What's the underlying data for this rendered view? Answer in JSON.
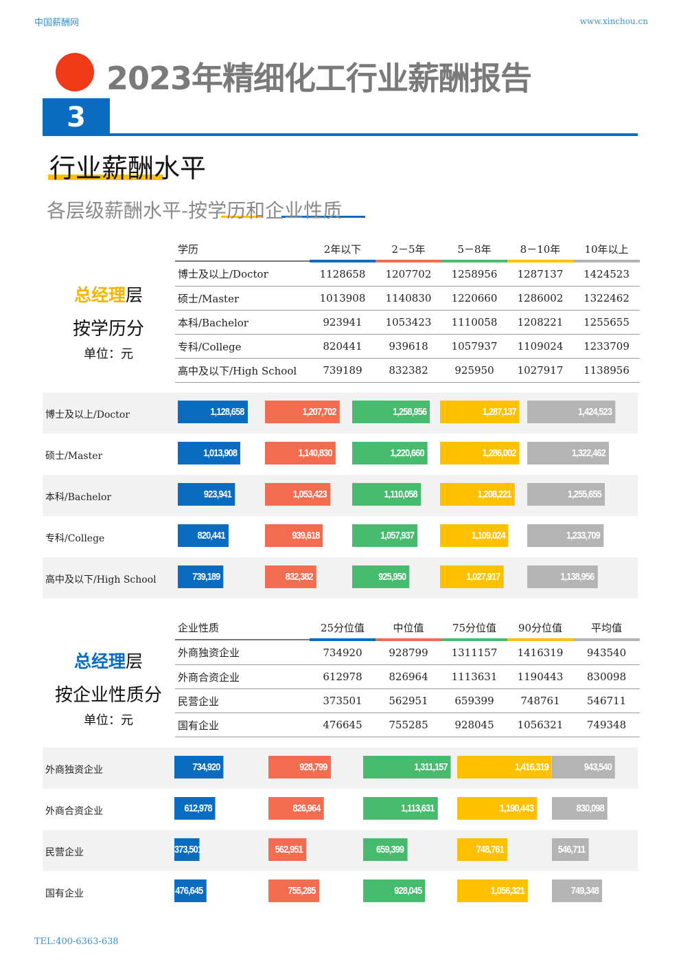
{
  "header": {
    "left": "中国薪酬网",
    "right": "www.xinchou.cn"
  },
  "title": "2023年精细化工行业薪酬报告",
  "section_number": "3",
  "section_title": "行业薪酬水平",
  "subtitle": "各层级薪酬水平-按学历和企业性质",
  "colors": [
    "#0a6cc0",
    "#f46c50",
    "#46bb6e",
    "#ffc000",
    "#b4b4b4"
  ],
  "edu": {
    "side": {
      "a": "总经理",
      "a2": "层",
      "b": "按学历分",
      "c": "单位：元"
    },
    "columns": [
      "学历",
      "2年以下",
      "2－5年",
      "5－8年",
      "8－10年",
      "10年以上"
    ],
    "rows": [
      {
        "label": "博士及以上/Doctor",
        "values": [
          1128658,
          1207702,
          1258956,
          1287137,
          1424523
        ],
        "fmt": [
          "1,128,658",
          "1,207,702",
          "1,258,956",
          "1,287,137",
          "1,424,523"
        ]
      },
      {
        "label": "硕士/Master",
        "values": [
          1013908,
          1140830,
          1220660,
          1286002,
          1322462
        ],
        "fmt": [
          "1,013,908",
          "1,140,830",
          "1,220,660",
          "1,286,002",
          "1,322,462"
        ]
      },
      {
        "label": "本科/Bachelor",
        "values": [
          923941,
          1053423,
          1110058,
          1208221,
          1255655
        ],
        "fmt": [
          "923,941",
          "1,053,423",
          "1,110,058",
          "1,208,221",
          "1,255,655"
        ]
      },
      {
        "label": "专科/College",
        "values": [
          820441,
          939618,
          1057937,
          1109024,
          1233709
        ],
        "fmt": [
          "820,441",
          "939,618",
          "1,057,937",
          "1,109,024",
          "1,233,709"
        ]
      },
      {
        "label": "高中及以下/High School",
        "values": [
          739189,
          832382,
          925950,
          1027917,
          1138956
        ],
        "fmt": [
          "739,189",
          "832,382",
          "925,950",
          "1,027,917",
          "1,138,956"
        ]
      }
    ]
  },
  "ent": {
    "side": {
      "a": "总经理",
      "a2": "层",
      "b": "按企业性质分",
      "c": "单位：元"
    },
    "columns": [
      "企业性质",
      "25分位值",
      "中位值",
      "75分位值",
      "90分位值",
      "平均值"
    ],
    "rows": [
      {
        "label": "外商独资企业",
        "values": [
          734920,
          928799,
          1311157,
          1416319,
          943540
        ],
        "fmt": [
          "734,920",
          "928,799",
          "1,311,157",
          "1,416,319",
          "943,540"
        ]
      },
      {
        "label": "外商合资企业",
        "values": [
          612978,
          826964,
          1113631,
          1190443,
          830098
        ],
        "fmt": [
          "612,978",
          "826,964",
          "1,113,631",
          "1,190,443",
          "830,098"
        ]
      },
      {
        "label": "民营企业",
        "values": [
          373501,
          562951,
          659399,
          748761,
          546711
        ],
        "fmt": [
          "373,501",
          "562,951",
          "659,399",
          "748,761",
          "546,711"
        ]
      },
      {
        "label": "国有企业",
        "values": [
          476645,
          755285,
          928045,
          1056321,
          749348
        ],
        "fmt": [
          "476,645",
          "755,285",
          "928,045",
          "1,056,321",
          "749,348"
        ]
      }
    ]
  },
  "footer": "TEL:400-6363-638"
}
